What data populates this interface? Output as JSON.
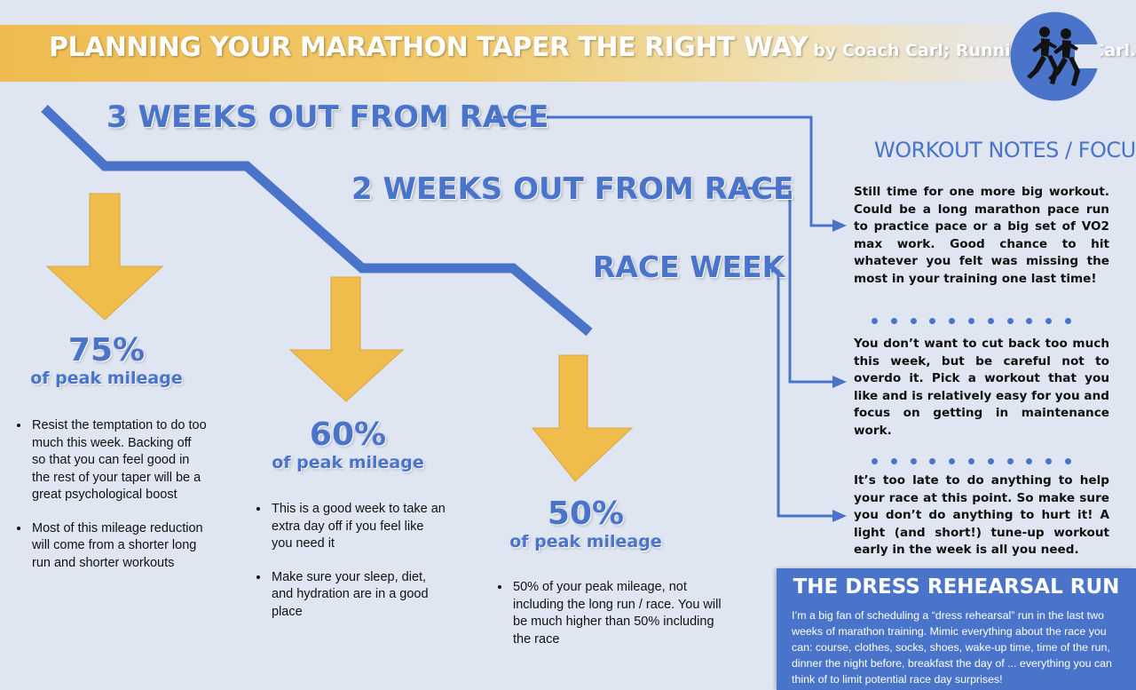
{
  "header": {
    "title": "PLANNING YOUR MARATHON TAPER THE RIGHT WAY",
    "byline": "by Coach Carl; RunningCoachCarl.com"
  },
  "logo": {
    "icon": "runners-logo-icon"
  },
  "colors": {
    "blue": "#4a74c9",
    "gold": "#f0bd4c",
    "background": "#dfe6f2"
  },
  "phases": [
    {
      "label": "3 WEEKS OUT FROM RACE"
    },
    {
      "label": "2 WEEKS OUT FROM RACE"
    },
    {
      "label": "RACE WEEK"
    }
  ],
  "weeks": [
    {
      "percent": "75%",
      "label": "of peak mileage",
      "bullets": [
        "Resist the temptation to do too much this week. Backing off so that you can feel good in the rest of your taper will be a great psychological boost",
        "Most of this mileage reduction will come from a shorter long run and shorter workouts"
      ]
    },
    {
      "percent": "60%",
      "label": "of peak mileage",
      "bullets": [
        "This is a good week to take an extra day off if you feel like you need it",
        "Make sure your sleep, diet, and hydration are in a good place"
      ]
    },
    {
      "percent": "50%",
      "label": "of peak mileage",
      "bullets": [
        "50% of your peak mileage, not including the long run / race. You will be much higher than 50% including the race"
      ]
    }
  ],
  "notes": {
    "title": "WORKOUT NOTES / FOCUS",
    "items": [
      "Still time for one more big workout. Could be a long marathon pace run to practice pace or a big set of VO2 max work. Good chance to hit whatever you felt was missing the most in your training one last time!",
      "You don’t want to cut back too much this week, but be careful not to overdo it. Pick a workout that you like and is relatively easy for you and focus on getting in maintenance work.",
      "It’s too late to do anything to help your race at this point. So make sure you don’t do anything to hurt it! A light (and short!) tune-up workout early in the week is all you need."
    ]
  },
  "dress_rehearsal": {
    "title": "THE DRESS REHEARSAL RUN",
    "text": "I’m a big fan of scheduling a “dress rehearsal” run in the last two weeks of marathon training. Mimic everything about the race you can: course, clothes, socks, shoes, wake-up time, time of the run, dinner the night before, breakfast the day of ... everything you can think of to limit potential race day surprises!"
  }
}
